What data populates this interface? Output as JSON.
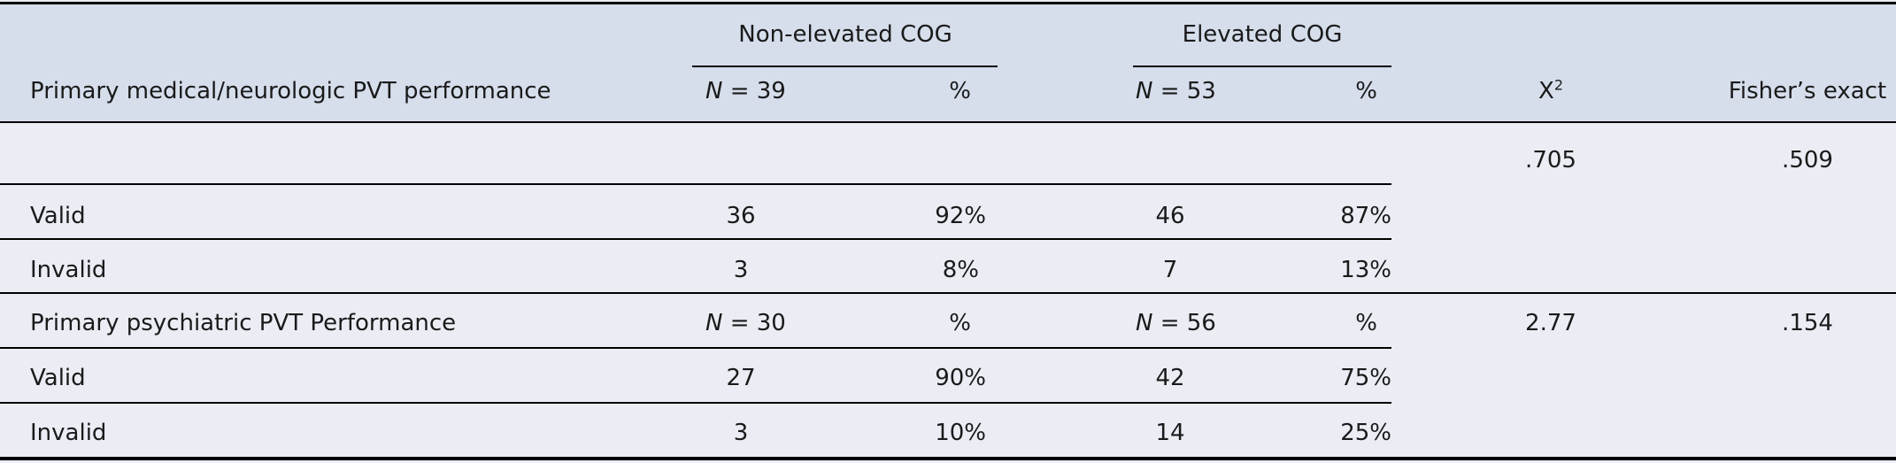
{
  "table": {
    "header": {
      "row_label": "Primary medical/neurologic PVT performance",
      "group1": "Non-elevated COG",
      "group2": "Elevated COG",
      "g1_n_symbol": "N",
      "g1_n_value": "= 39",
      "g1_pct": "%",
      "g2_n_symbol": "N",
      "g2_n_value": "= 53",
      "g2_pct": "%",
      "chi_label": "X",
      "chi_sup": "2",
      "fisher_label": "Fisher’s exact"
    },
    "section1": {
      "chi": ".705",
      "fisher": ".509",
      "rows": [
        {
          "label": "Valid",
          "g1_n": "36",
          "g1_pct": "92%",
          "g2_n": "46",
          "g2_pct": "87%"
        },
        {
          "label": "Invalid",
          "g1_n": "3",
          "g1_pct": "8%",
          "g2_n": "7",
          "g2_pct": "13%"
        }
      ]
    },
    "section2": {
      "label": "Primary psychiatric PVT Performance",
      "g1_n_symbol": "N",
      "g1_n_value": "= 30",
      "g1_pct": "%",
      "g2_n_symbol": "N",
      "g2_n_value": "= 56",
      "g2_pct": "%",
      "chi": "2.77",
      "fisher": ".154",
      "rows": [
        {
          "label": "Valid",
          "g1_n": "27",
          "g1_pct": "90%",
          "g2_n": "42",
          "g2_pct": "75%"
        },
        {
          "label": "Invalid",
          "g1_n": "3",
          "g1_pct": "10%",
          "g2_n": "14",
          "g2_pct": "25%"
        }
      ]
    }
  }
}
